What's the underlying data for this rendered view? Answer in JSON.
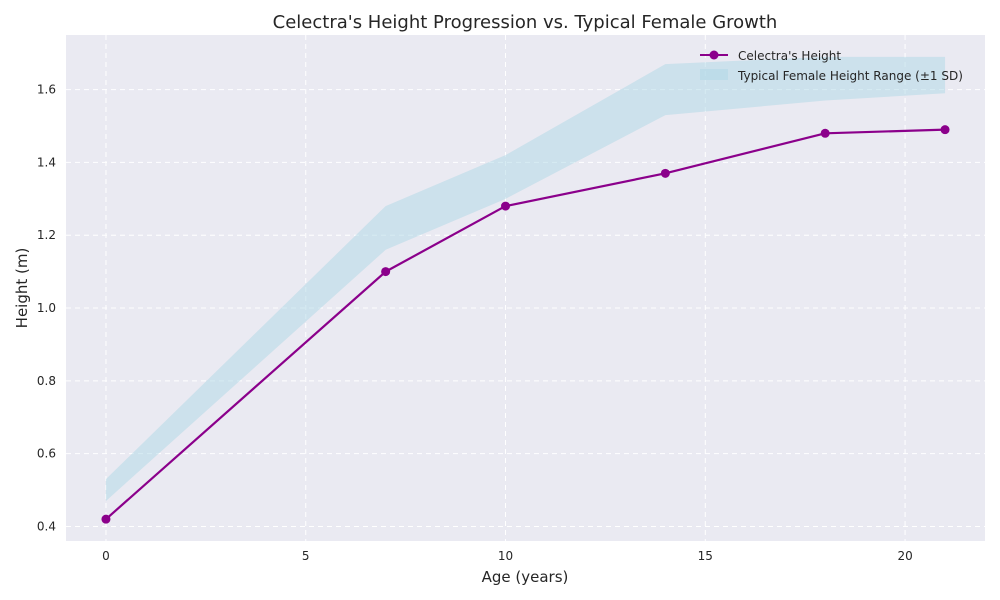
{
  "chart_data": {
    "type": "line",
    "title": "Celectra's Height Progression vs. Typical Female Growth",
    "xlabel": "Age (years)",
    "ylabel": "Height (m)",
    "xlim": [
      -1,
      22
    ],
    "ylim": [
      0.36,
      1.75
    ],
    "xticks": [
      0,
      5,
      10,
      15,
      20
    ],
    "yticks": [
      0.4,
      0.6,
      0.8,
      1.0,
      1.2,
      1.4,
      1.6
    ],
    "grid": true,
    "legend_position": "top-right",
    "series": [
      {
        "name": "Celectra's Height",
        "x": [
          0,
          7,
          10,
          14,
          18,
          21
        ],
        "y": [
          0.42,
          1.1,
          1.28,
          1.37,
          1.48,
          1.49
        ],
        "color": "#8b008b"
      }
    ],
    "band": {
      "name": "Typical Female Height Range (±1 SD)",
      "x": [
        0,
        7,
        10,
        14,
        18,
        21
      ],
      "lower": [
        0.47,
        1.16,
        1.3,
        1.53,
        1.57,
        1.59
      ],
      "upper": [
        0.53,
        1.28,
        1.42,
        1.67,
        1.69,
        1.69
      ],
      "color": "#add8e6"
    },
    "background_color": "#eaeaf2"
  }
}
